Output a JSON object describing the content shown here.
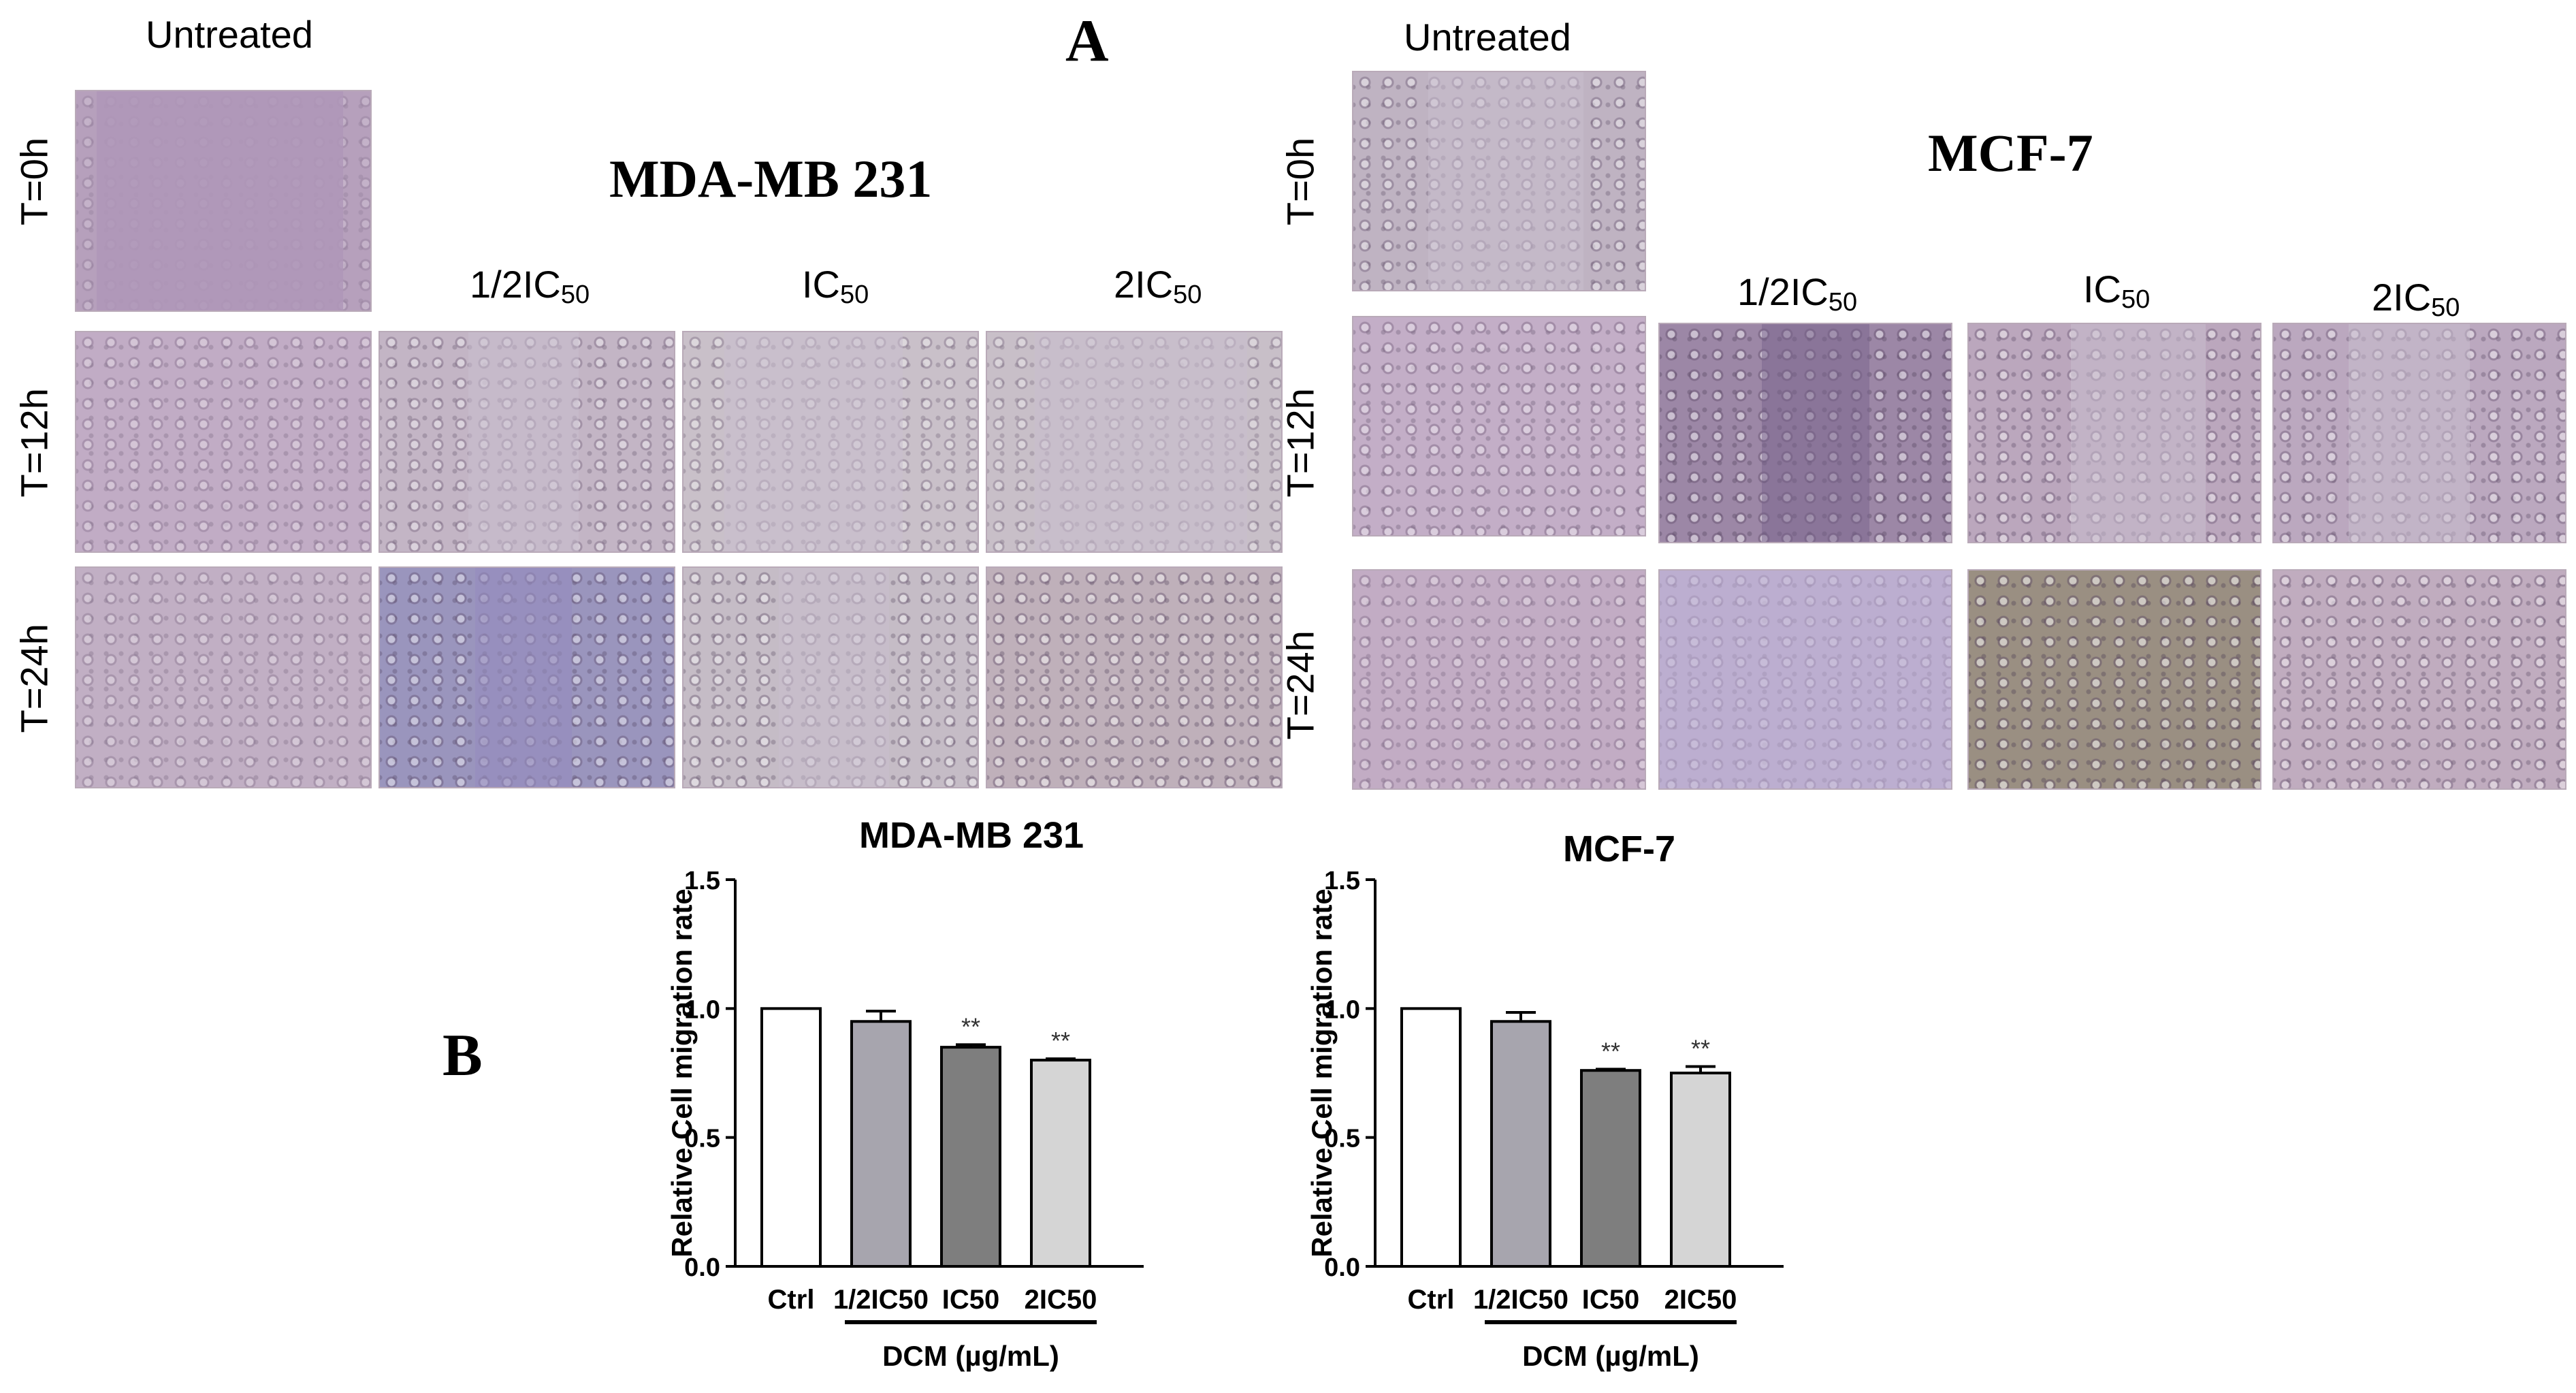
{
  "panel_a": {
    "letter": "A",
    "untreated_label": "Untreated",
    "row_labels": [
      "T=0h",
      "T=12h",
      "T=24h"
    ],
    "concentrations": [
      {
        "base": "1/2IC",
        "sub": "50"
      },
      {
        "base": "IC",
        "sub": "50"
      },
      {
        "base": "2IC",
        "sub": "50"
      }
    ],
    "left_title": "MDA-MB 231",
    "right_title": "MCF-7"
  },
  "panel_b": {
    "letter": "B"
  },
  "colors": {
    "ctrl": "#ffffff",
    "half_ic50": "#a7a5ae",
    "ic50": "#7e7e7e",
    "two_ic50": "#d5d5d5",
    "micro_base": "#bba5bf",
    "micro_dark": "#8e86a8",
    "micro_brown": "#9c8f86"
  },
  "chart_data": [
    {
      "type": "bar",
      "title": "MDA-MB 231",
      "ylabel": "Relative Cell migration rate",
      "xlabel": "DCM (µg/mL)",
      "categories": [
        "Ctrl",
        "1/2IC50",
        "IC50",
        "2IC50"
      ],
      "values": [
        1.0,
        0.95,
        0.85,
        0.8
      ],
      "errors": [
        0.0,
        0.04,
        0.01,
        0.005
      ],
      "significance": [
        "",
        "",
        "**",
        "**"
      ],
      "ylim": [
        0.0,
        1.5
      ],
      "yticks": [
        "0.0",
        "0.5",
        "1.0",
        "1.5"
      ],
      "ytick_values": [
        0.0,
        0.5,
        1.0,
        1.5
      ],
      "grid": false,
      "legend": "none"
    },
    {
      "type": "bar",
      "title": "MCF-7",
      "ylabel": "Relative Cell migration rate",
      "xlabel": "DCM (µg/mL)",
      "categories": [
        "Ctrl",
        "1/2IC50",
        "IC50",
        "2IC50"
      ],
      "values": [
        1.0,
        0.95,
        0.76,
        0.75
      ],
      "errors": [
        0.0,
        0.035,
        0.005,
        0.025
      ],
      "significance": [
        "",
        "",
        "**",
        "**"
      ],
      "ylim": [
        0.0,
        1.5
      ],
      "yticks": [
        "0.0",
        "0.5",
        "1.0",
        "1.5"
      ],
      "ytick_values": [
        0.0,
        0.5,
        1.0,
        1.5
      ],
      "grid": false,
      "legend": "none"
    }
  ]
}
